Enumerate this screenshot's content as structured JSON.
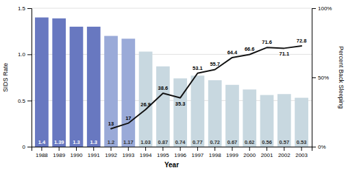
{
  "chart_data": {
    "type": "bar",
    "xlabel": "Year",
    "ylabel": "SIDS Rate",
    "y2label": "Percent Back Sleeping",
    "categories": [
      "1988",
      "1989",
      "1990",
      "1991",
      "1992",
      "1993",
      "1994",
      "1995",
      "1996",
      "1997",
      "1998",
      "1999",
      "2000",
      "2001",
      "2002",
      "2003"
    ],
    "series": [
      {
        "type": "bar",
        "colors": [
          "#6878c0",
          "#6878c0",
          "#6878c0",
          "#6878c0",
          "#9aaad8",
          "#9aaad8",
          "#c8d8e0",
          "#c8d8e0",
          "#c8d8e0",
          "#c8d8e0",
          "#c8d8e0",
          "#c8d8e0",
          "#c8d8e0",
          "#c8d8e0",
          "#c8d8e0",
          "#c8d8e0"
        ],
        "values": [
          1.4,
          1.39,
          1.3,
          1.3,
          1.2,
          1.17,
          1.03,
          0.87,
          0.74,
          0.77,
          0.72,
          0.67,
          0.62,
          0.56,
          0.57,
          0.53
        ],
        "data_labels": true
      },
      {
        "type": "line",
        "axis": "y2",
        "color": "#111111",
        "values": [
          null,
          null,
          null,
          null,
          13,
          17,
          26.9,
          38.6,
          35.3,
          53.1,
          55.7,
          64.4,
          66.6,
          71.6,
          71.1,
          72.8
        ],
        "data_labels": true
      }
    ],
    "ylim": [
      0,
      1.5
    ],
    "yticks": [
      0,
      0.5,
      {
        "value": 1.0,
        "label": "1.0"
      },
      1.5
    ],
    "y2lim": [
      0,
      100
    ],
    "y2ticks": [
      {
        "value": 0,
        "label": "0%"
      },
      {
        "value": 50,
        "label": "50%"
      },
      {
        "value": 100,
        "label": "100%"
      }
    ],
    "grid": true
  }
}
